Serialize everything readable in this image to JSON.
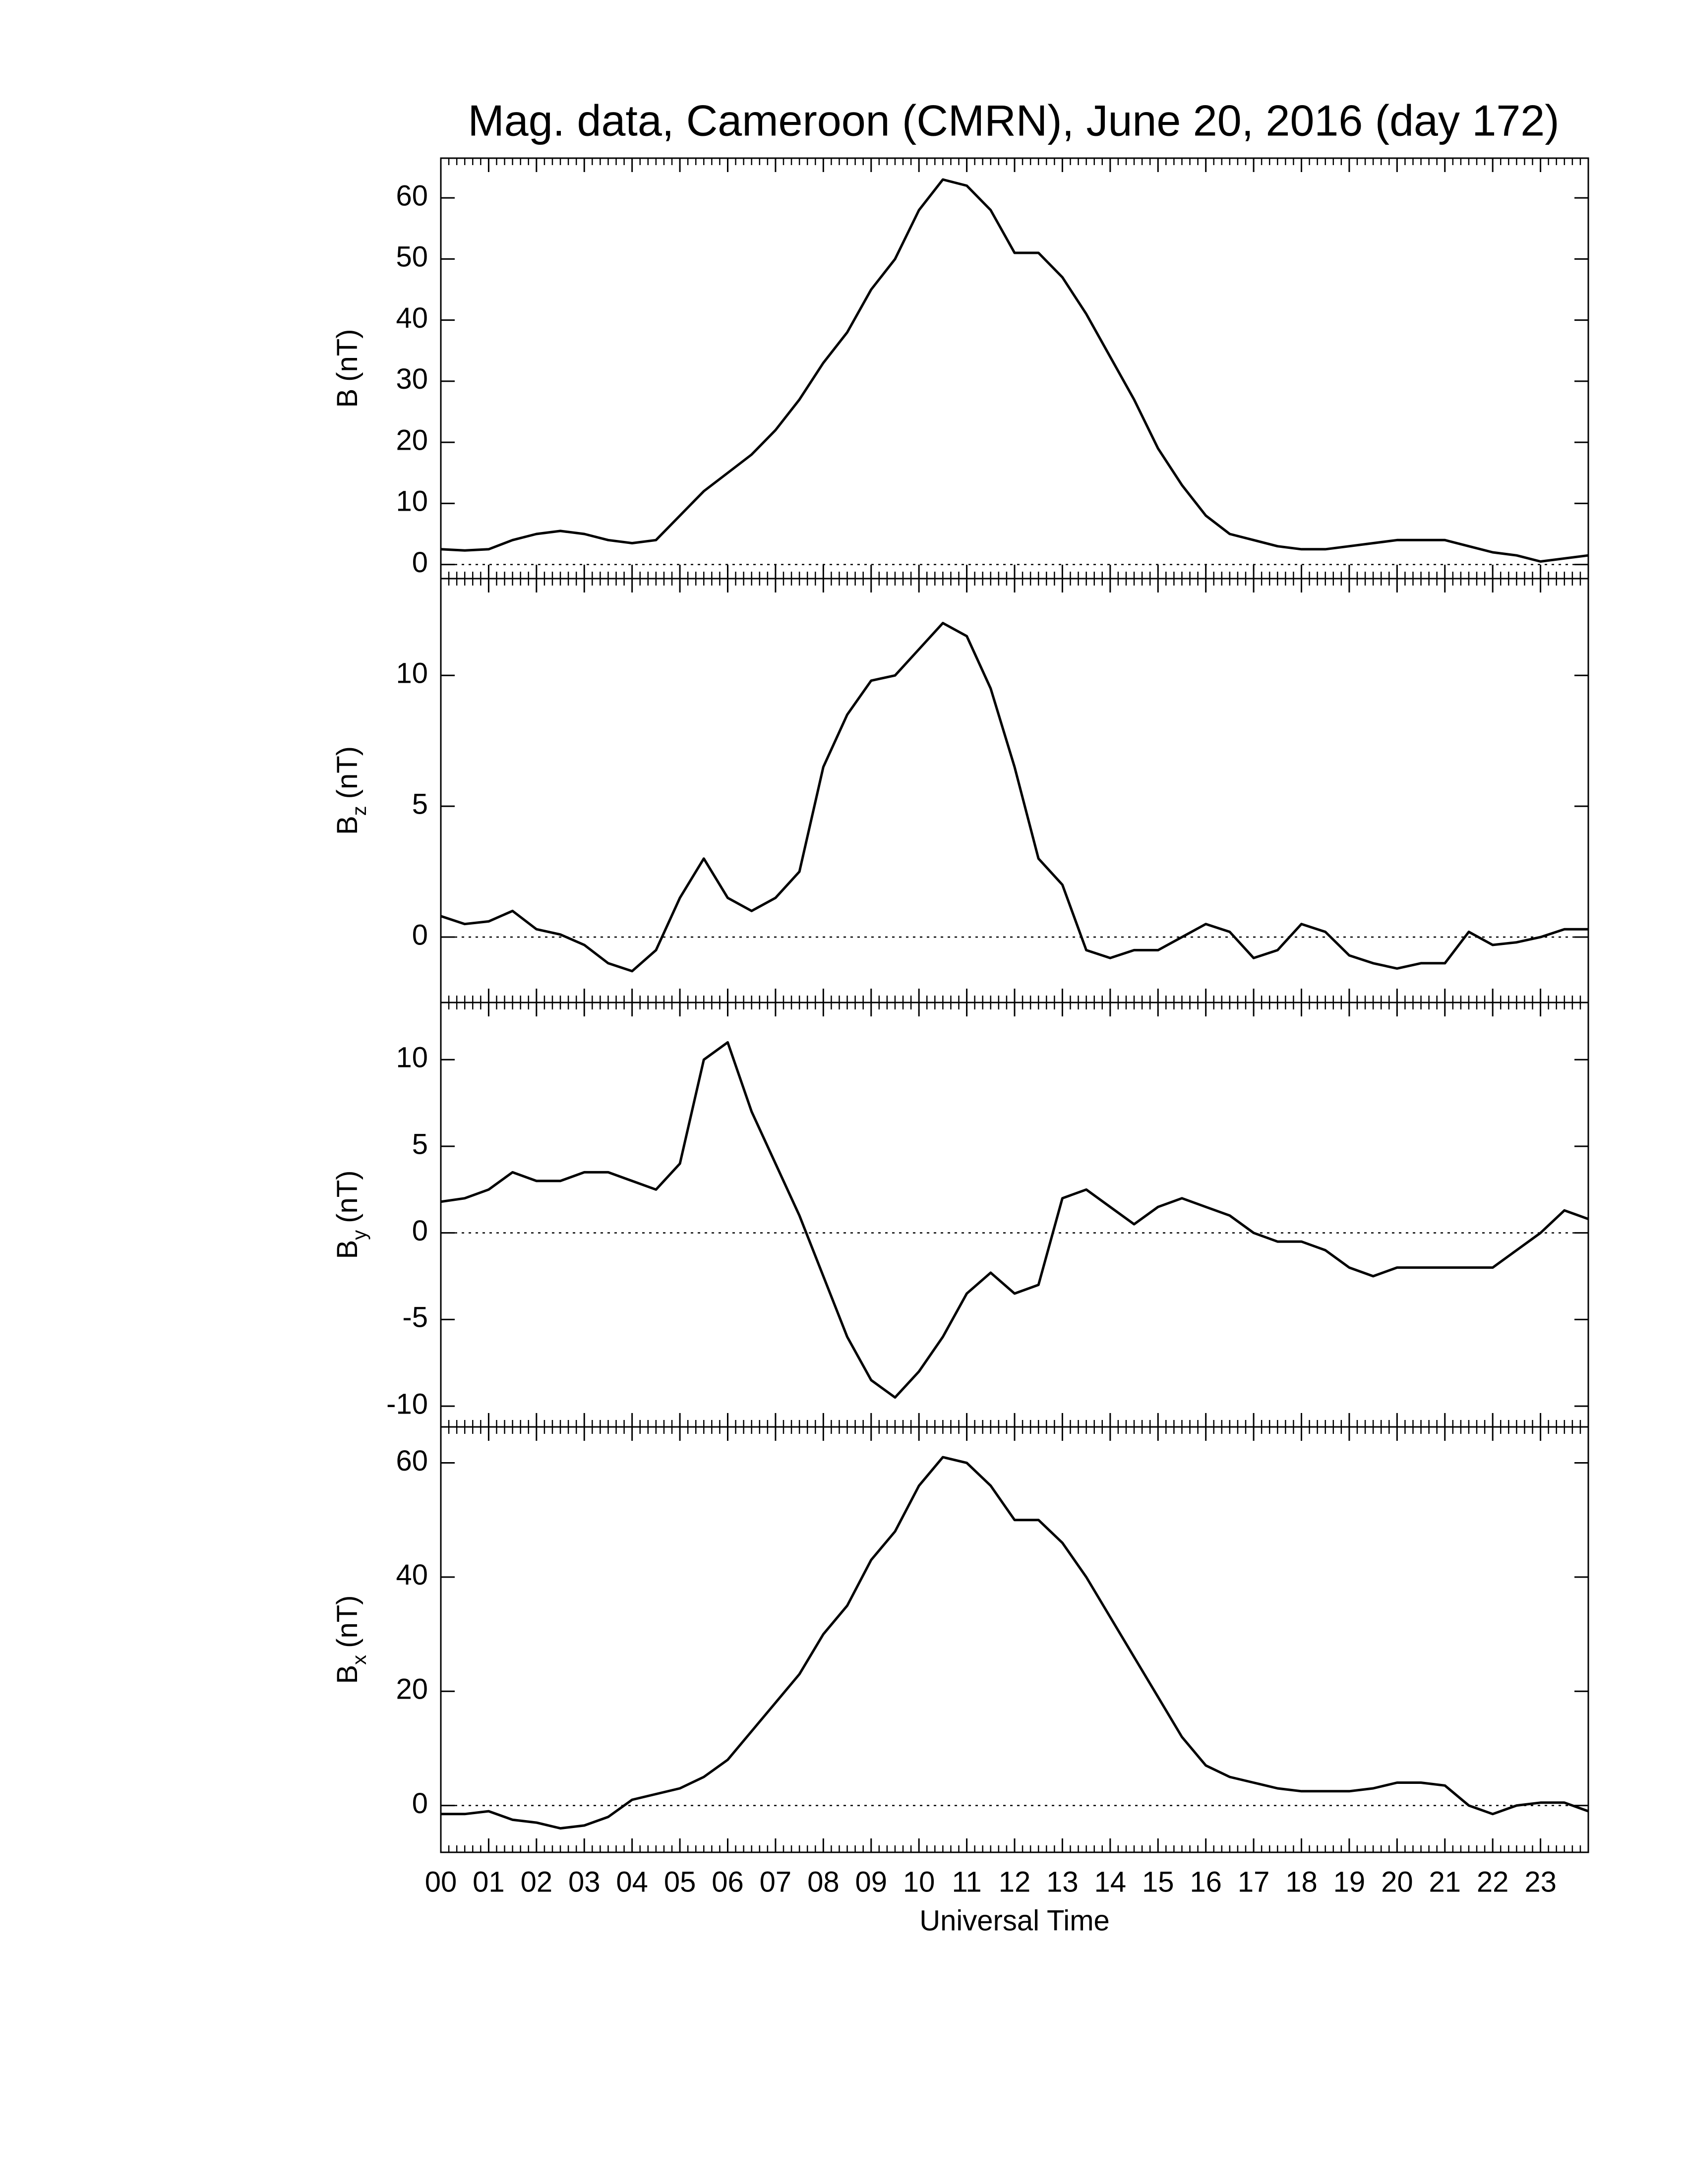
{
  "chart_data": [
    {
      "type": "line",
      "title": "Mag. data, Cameroon (CMRN), June 20, 2016 (day 172)",
      "ylabel": "B",
      "ylabel_unit": "(nT)",
      "xlim": [
        0,
        24
      ],
      "ylim": [
        -2.3,
        66.5
      ],
      "yticks": [
        0,
        10,
        20,
        30,
        40,
        50,
        60
      ],
      "zero_line": true,
      "x": [
        0,
        0.5,
        1,
        1.5,
        2,
        2.5,
        3,
        3.5,
        4,
        4.5,
        5,
        5.5,
        6,
        6.5,
        7,
        7.5,
        8,
        8.5,
        9,
        9.5,
        10,
        10.5,
        11,
        11.5,
        12,
        12.5,
        13,
        13.5,
        14,
        14.5,
        15,
        15.5,
        16,
        16.5,
        17,
        17.5,
        18,
        18.5,
        19,
        19.5,
        20,
        20.5,
        21,
        21.5,
        22,
        22.5,
        23,
        23.5,
        24
      ],
      "series": [
        {
          "color": "#000000",
          "values": [
            2.5,
            2.3,
            2.5,
            4,
            5,
            5.5,
            5,
            4,
            3.5,
            4,
            8,
            12,
            15,
            18,
            22,
            27,
            33,
            38,
            45,
            50,
            58,
            63,
            62,
            58,
            51,
            51,
            47,
            41,
            34,
            27,
            19,
            13,
            8,
            5,
            4,
            3,
            2.5,
            2.5,
            3,
            3.5,
            4,
            4,
            4,
            3,
            2,
            1.5,
            0.5,
            1,
            1.5
          ]
        }
      ]
    },
    {
      "type": "line",
      "ylabel": "B",
      "ylabel_sub": "z",
      "ylabel_unit": "(nT)",
      "xlim": [
        0,
        24
      ],
      "ylim": [
        -2.5,
        13.7
      ],
      "yticks": [
        0,
        5,
        10
      ],
      "zero_line": true,
      "x": [
        0,
        0.5,
        1,
        1.5,
        2,
        2.5,
        3,
        3.5,
        4,
        4.5,
        5,
        5.5,
        6,
        6.5,
        7,
        7.5,
        8,
        8.5,
        9,
        9.5,
        10,
        10.5,
        11,
        11.5,
        12,
        12.5,
        13,
        13.5,
        14,
        14.5,
        15,
        15.5,
        16,
        16.5,
        17,
        17.5,
        18,
        18.5,
        19,
        19.5,
        20,
        20.5,
        21,
        21.5,
        22,
        22.5,
        23,
        23.5,
        24
      ],
      "series": [
        {
          "color": "#000000",
          "values": [
            0.8,
            0.5,
            0.6,
            1.0,
            0.3,
            0.1,
            -0.3,
            -1.0,
            -1.3,
            -0.5,
            1.5,
            3.0,
            1.5,
            1.0,
            1.5,
            2.5,
            6.5,
            8.5,
            9.8,
            10,
            11,
            12,
            11.5,
            9.5,
            6.5,
            3,
            2,
            -0.5,
            -0.8,
            -0.5,
            -0.5,
            0,
            0.5,
            0.2,
            -0.8,
            -0.5,
            0.5,
            0.2,
            -0.7,
            -1.0,
            -1.2,
            -1.0,
            -1.0,
            0.2,
            -0.3,
            -0.2,
            0,
            0.3,
            0.3
          ]
        }
      ]
    },
    {
      "type": "line",
      "ylabel": "B",
      "ylabel_sub": "y",
      "ylabel_unit": "(nT)",
      "xlim": [
        0,
        24
      ],
      "ylim": [
        -11.2,
        13.3
      ],
      "yticks": [
        -10,
        -5,
        0,
        5,
        10
      ],
      "zero_line": true,
      "x": [
        0,
        0.5,
        1,
        1.5,
        2,
        2.5,
        3,
        3.5,
        4,
        4.5,
        5,
        5.5,
        6,
        6.5,
        7,
        7.5,
        8,
        8.5,
        9,
        9.5,
        10,
        10.5,
        11,
        11.5,
        12,
        12.5,
        13,
        13.5,
        14,
        14.5,
        15,
        15.5,
        16,
        16.5,
        17,
        17.5,
        18,
        18.5,
        19,
        19.5,
        20,
        20.5,
        21,
        21.5,
        22,
        22.5,
        23,
        23.5,
        24
      ],
      "series": [
        {
          "color": "#000000",
          "values": [
            1.8,
            2,
            2.5,
            3.5,
            3,
            3,
            3.5,
            3.5,
            3,
            2.5,
            4,
            10,
            11,
            7,
            4,
            1,
            -2.5,
            -6,
            -8.5,
            -9.5,
            -8,
            -6,
            -3.5,
            -2.3,
            -3.5,
            -3,
            2,
            2.5,
            1.5,
            0.5,
            1.5,
            2,
            1.5,
            1,
            0,
            -0.5,
            -0.5,
            -1,
            -2,
            -2.5,
            -2,
            -2,
            -2,
            -2,
            -2,
            -1,
            0,
            1.3,
            0.8
          ]
        }
      ]
    },
    {
      "type": "line",
      "ylabel": "B",
      "ylabel_sub": "x",
      "ylabel_unit": "(nT)",
      "xlabel": "Universal Time",
      "xlim": [
        0,
        24
      ],
      "ylim": [
        -8.2,
        66.3
      ],
      "yticks": [
        0,
        20,
        40,
        60
      ],
      "zero_line": true,
      "xticks": [
        {
          "value": 0,
          "label": "00"
        },
        {
          "value": 1,
          "label": "01"
        },
        {
          "value": 2,
          "label": "02"
        },
        {
          "value": 3,
          "label": "03"
        },
        {
          "value": 4,
          "label": "04"
        },
        {
          "value": 5,
          "label": "05"
        },
        {
          "value": 6,
          "label": "06"
        },
        {
          "value": 7,
          "label": "07"
        },
        {
          "value": 8,
          "label": "08"
        },
        {
          "value": 9,
          "label": "09"
        },
        {
          "value": 10,
          "label": "10"
        },
        {
          "value": 11,
          "label": "11"
        },
        {
          "value": 12,
          "label": "12"
        },
        {
          "value": 13,
          "label": "13"
        },
        {
          "value": 14,
          "label": "14"
        },
        {
          "value": 15,
          "label": "15"
        },
        {
          "value": 16,
          "label": "16"
        },
        {
          "value": 17,
          "label": "17"
        },
        {
          "value": 18,
          "label": "18"
        },
        {
          "value": 19,
          "label": "19"
        },
        {
          "value": 20,
          "label": "20"
        },
        {
          "value": 21,
          "label": "21"
        },
        {
          "value": 22,
          "label": "22"
        },
        {
          "value": 23,
          "label": "23"
        }
      ],
      "x": [
        0,
        0.5,
        1,
        1.5,
        2,
        2.5,
        3,
        3.5,
        4,
        4.5,
        5,
        5.5,
        6,
        6.5,
        7,
        7.5,
        8,
        8.5,
        9,
        9.5,
        10,
        10.5,
        11,
        11.5,
        12,
        12.5,
        13,
        13.5,
        14,
        14.5,
        15,
        15.5,
        16,
        16.5,
        17,
        17.5,
        18,
        18.5,
        19,
        19.5,
        20,
        20.5,
        21,
        21.5,
        22,
        22.5,
        23,
        23.5,
        24
      ],
      "series": [
        {
          "color": "#000000",
          "values": [
            -1.5,
            -1.5,
            -1,
            -2.5,
            -3,
            -4,
            -3.5,
            -2,
            1,
            2,
            3,
            5,
            8,
            13,
            18,
            23,
            30,
            35,
            43,
            48,
            56,
            61,
            60,
            56,
            50,
            50,
            46,
            40,
            33,
            26,
            19,
            12,
            7,
            5,
            4,
            3,
            2.5,
            2.5,
            2.5,
            3,
            4,
            4,
            3.5,
            0,
            -1.5,
            0,
            0.5,
            0.5,
            -1
          ]
        }
      ]
    }
  ]
}
